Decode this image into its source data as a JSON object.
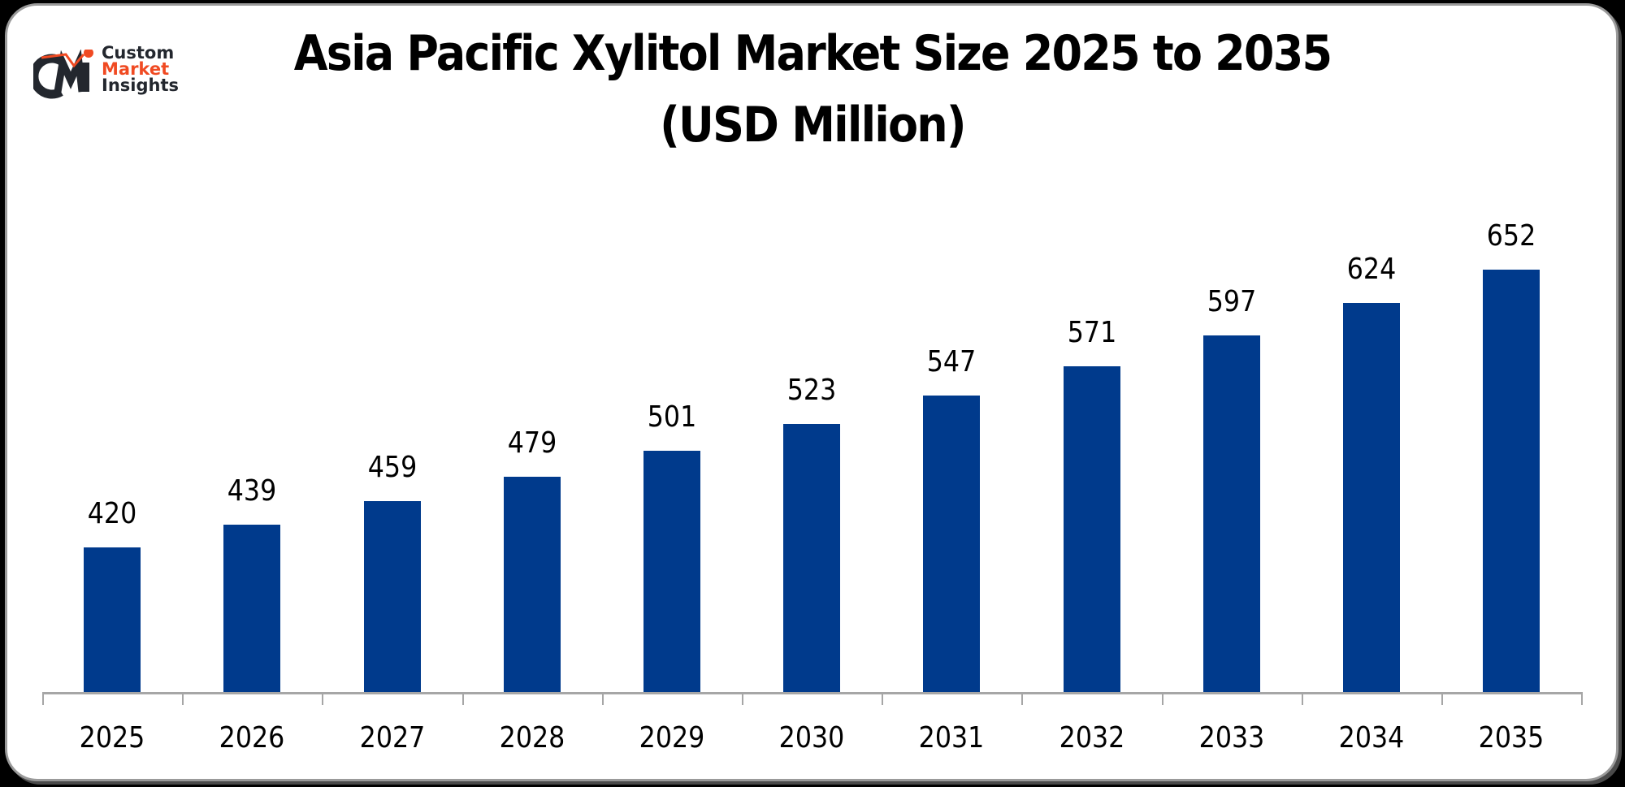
{
  "logo": {
    "line1": "Custom",
    "line2": "Market",
    "line3": "Insights",
    "mark": "CMI"
  },
  "title": {
    "line1": "Asia Pacific Xylitol Market Size 2025 to 2035",
    "line2": "(USD Million)"
  },
  "colors": {
    "bar": "#003a8c",
    "axis": "#a6a6a6",
    "logo_accent": "#f04a22",
    "logo_dark": "#23272e"
  },
  "chart_data": {
    "type": "bar",
    "title": "Asia Pacific Xylitol Market Size 2025 to 2035 (USD Million)",
    "xlabel": "",
    "ylabel": "USD Million",
    "categories": [
      "2025",
      "2026",
      "2027",
      "2028",
      "2029",
      "2030",
      "2031",
      "2032",
      "2033",
      "2034",
      "2035"
    ],
    "values": [
      420,
      439,
      459,
      479,
      501,
      523,
      547,
      571,
      597,
      624,
      652
    ],
    "ylim": [
      0,
      700
    ],
    "grid": false,
    "legend": "none",
    "data_labels": true
  }
}
